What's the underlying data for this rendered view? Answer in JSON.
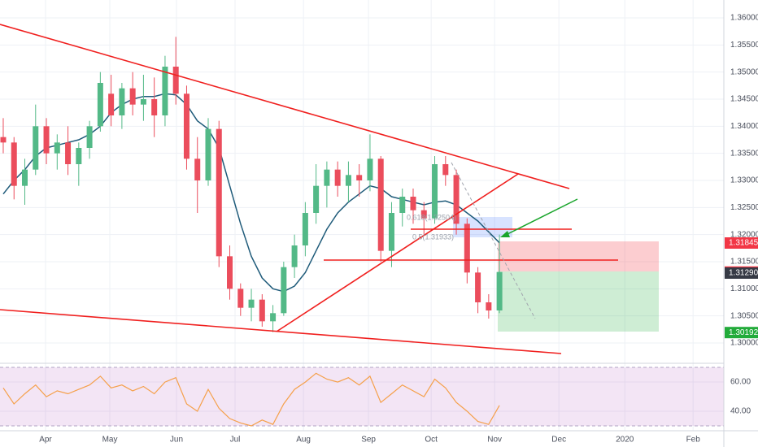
{
  "chart_data": {
    "type": "candlestick",
    "up_color": "#53b987",
    "down_color": "#eb4d5c",
    "xlim": [
      -0.3,
      66.8
    ],
    "xticks": [
      {
        "value": 3.92,
        "label": "Apr"
      },
      {
        "value": 9.88,
        "label": "May"
      },
      {
        "value": 16.06,
        "label": "Jun"
      },
      {
        "value": 21.49,
        "label": "Jul"
      },
      {
        "value": 27.83,
        "label": "Aug"
      },
      {
        "value": 33.86,
        "label": "Sep"
      },
      {
        "value": 39.67,
        "label": "Oct"
      },
      {
        "value": 45.55,
        "label": "Nov"
      },
      {
        "value": 51.51,
        "label": "Dec"
      },
      {
        "value": 57.62,
        "label": "2020"
      },
      {
        "value": 63.95,
        "label": "Feb"
      }
    ],
    "ylim": [
      1.29655,
      1.3633
    ],
    "yticks": [
      {
        "value": 1.3,
        "label": "1.30000"
      },
      {
        "value": 1.305,
        "label": "1.30500"
      },
      {
        "value": 1.31,
        "label": "1.31000"
      },
      {
        "value": 1.315,
        "label": "1.31500"
      },
      {
        "value": 1.32,
        "label": "1.32000"
      },
      {
        "value": 1.325,
        "label": "1.32500"
      },
      {
        "value": 1.33,
        "label": "1.33000"
      },
      {
        "value": 1.335,
        "label": "1.33500"
      },
      {
        "value": 1.34,
        "label": "1.34000"
      },
      {
        "value": 1.345,
        "label": "1.34500"
      },
      {
        "value": 1.35,
        "label": "1.35000"
      },
      {
        "value": 1.355,
        "label": "1.35500"
      },
      {
        "value": 1.36,
        "label": "1.36000"
      }
    ],
    "grid": true,
    "open": [
      1.338,
      1.337,
      1.329,
      1.332,
      1.34,
      1.335,
      1.337,
      1.333,
      1.336,
      1.34,
      1.346,
      1.342,
      1.347,
      1.344,
      1.345,
      1.342,
      1.351,
      1.346,
      1.334,
      1.33,
      1.3395,
      1.316,
      1.31,
      1.3065,
      1.308,
      1.304,
      1.3055,
      1.314,
      1.318,
      1.324,
      1.329,
      1.332,
      1.329,
      1.331,
      1.33,
      1.334,
      1.317,
      1.324,
      1.327,
      1.3245,
      1.323,
      1.333,
      1.331,
      1.322,
      1.313,
      1.3075,
      1.306
    ],
    "high": [
      1.3415,
      1.338,
      1.334,
      1.344,
      1.3415,
      1.3385,
      1.34,
      1.337,
      1.341,
      1.35,
      1.3495,
      1.348,
      1.35,
      1.3495,
      1.349,
      1.353,
      1.3565,
      1.3475,
      1.338,
      1.3415,
      1.341,
      1.318,
      1.311,
      1.31,
      1.309,
      1.307,
      1.315,
      1.32,
      1.326,
      1.333,
      1.3335,
      1.3335,
      1.3335,
      1.333,
      1.3385,
      1.3345,
      1.326,
      1.3285,
      1.3285,
      1.326,
      1.3345,
      1.3345,
      1.332,
      1.323,
      1.314,
      1.309,
      1.32
    ],
    "low": [
      1.335,
      1.3265,
      1.3255,
      1.331,
      1.333,
      1.332,
      1.331,
      1.329,
      1.334,
      1.339,
      1.34,
      1.3395,
      1.342,
      1.341,
      1.338,
      1.34,
      1.344,
      1.332,
      1.324,
      1.329,
      1.314,
      1.308,
      1.305,
      1.304,
      1.303,
      1.302,
      1.305,
      1.312,
      1.316,
      1.322,
      1.325,
      1.327,
      1.326,
      1.327,
      1.328,
      1.315,
      1.314,
      1.3215,
      1.322,
      1.32,
      1.322,
      1.329,
      1.32,
      1.311,
      1.3055,
      1.3045,
      1.3055
    ],
    "close": [
      1.337,
      1.329,
      1.332,
      1.34,
      1.335,
      1.337,
      1.333,
      1.336,
      1.34,
      1.348,
      1.342,
      1.347,
      1.344,
      1.345,
      1.342,
      1.351,
      1.346,
      1.334,
      1.33,
      1.3395,
      1.316,
      1.31,
      1.3065,
      1.308,
      1.304,
      1.3055,
      1.314,
      1.318,
      1.324,
      1.329,
      1.332,
      1.329,
      1.331,
      1.33,
      1.334,
      1.317,
      1.324,
      1.327,
      1.3245,
      1.323,
      1.333,
      1.331,
      1.322,
      1.313,
      1.3075,
      1.306,
      1.3131
    ],
    "ma": {
      "color": "#1f5b7a",
      "values": [
        1.3275,
        1.33,
        1.332,
        1.3345,
        1.336,
        1.3365,
        1.337,
        1.3375,
        1.3385,
        1.34,
        1.3425,
        1.344,
        1.345,
        1.3455,
        1.3455,
        1.346,
        1.3458,
        1.344,
        1.341,
        1.3395,
        1.336,
        1.329,
        1.322,
        1.316,
        1.312,
        1.31,
        1.3095,
        1.3105,
        1.313,
        1.317,
        1.321,
        1.324,
        1.326,
        1.3275,
        1.329,
        1.3285,
        1.327,
        1.3265,
        1.326,
        1.3255,
        1.326,
        1.3262,
        1.3255,
        1.324,
        1.3225,
        1.3205,
        1.3185
      ]
    },
    "price_markers": [
      {
        "value": 1.31845,
        "color": "#f23645"
      },
      {
        "value": 1.31309,
        "color": "#f23645"
      },
      {
        "value": 1.3129,
        "label": "1.31290",
        "color": "#363a45"
      },
      {
        "value": 1.30192,
        "color": "#22ab3a"
      }
    ],
    "annotations": [
      "0.618(1.32504)",
      "0.5(1.31933)"
    ],
    "rsi": {
      "color": "#f5a04a",
      "band": [
        30,
        70
      ],
      "ylim": [
        27.8,
        71.7
      ],
      "yticks": [
        {
          "value": 60,
          "label": "60.00"
        },
        {
          "value": 40,
          "label": "40.00"
        }
      ],
      "values": [
        56,
        45,
        52,
        58,
        50,
        54,
        52,
        55,
        58,
        64,
        56,
        58,
        54,
        57,
        52,
        60,
        63,
        45,
        40,
        55,
        42,
        35,
        32,
        30,
        34,
        31,
        45,
        55,
        60,
        66,
        62,
        60,
        63,
        58,
        64,
        46,
        52,
        58,
        54,
        50,
        62,
        56,
        46,
        40,
        33,
        31,
        44
      ]
    }
  }
}
